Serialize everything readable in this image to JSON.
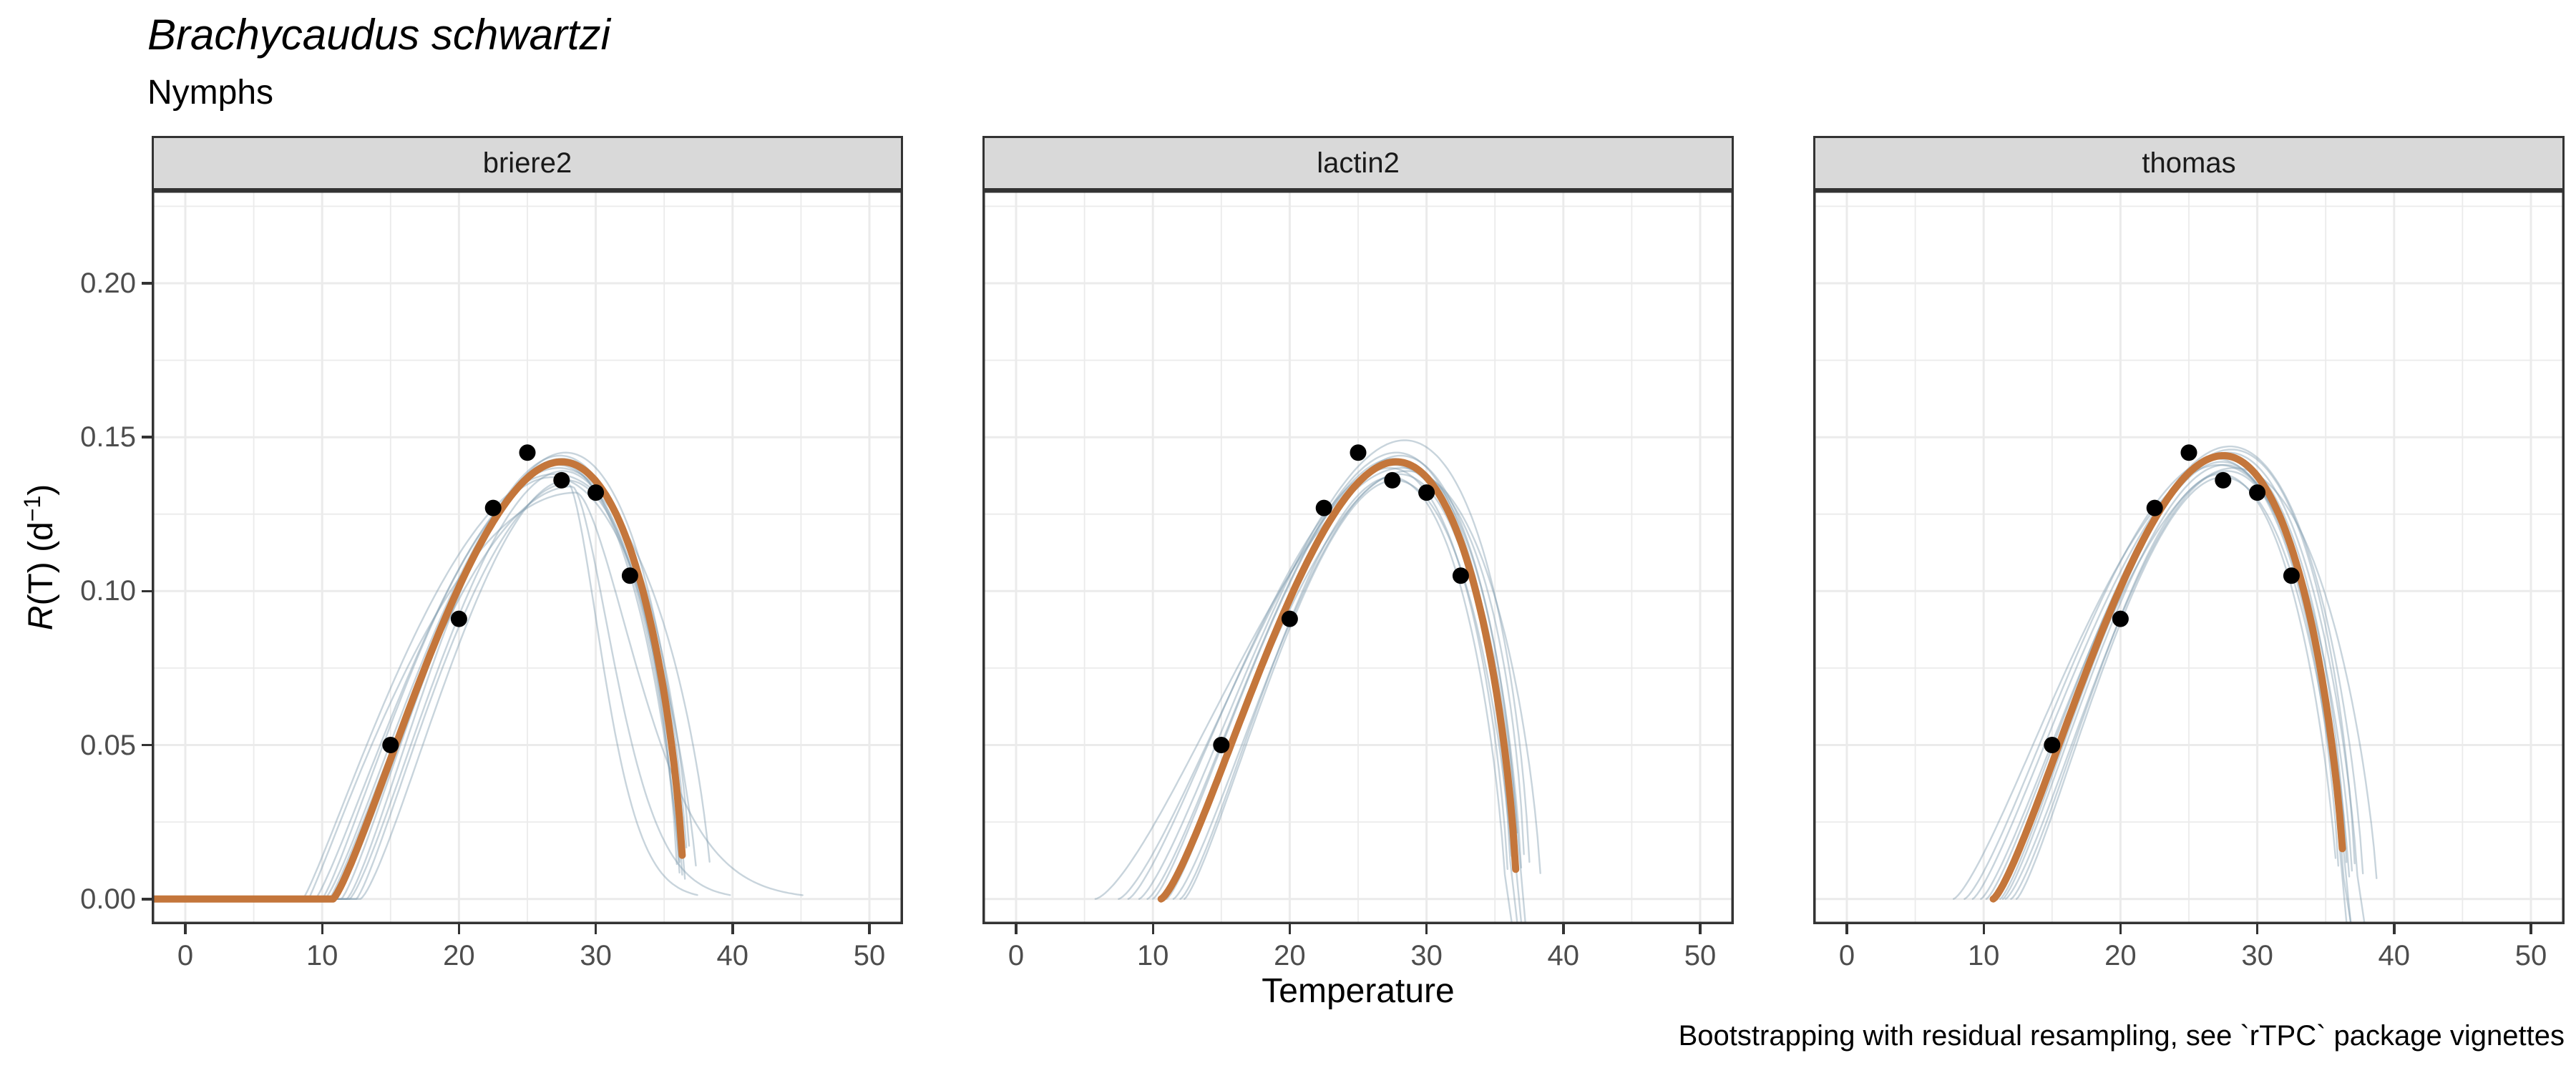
{
  "figure": {
    "title": "Brachycaudus schwartzi",
    "subtitle": "Nymphs",
    "x_axis_title": "Temperature",
    "caption": "Bootstrapping with residual resampling, see `rTPC` package vignettes",
    "y_axis_title": {
      "italic_var": "R",
      "plain": "(T) (d",
      "superscript": "−1",
      "close": ")"
    }
  },
  "chart_data": {
    "type": "line",
    "title": "Brachycaudus schwartzi",
    "subtitle": "Nymphs",
    "xlabel": "Temperature",
    "ylabel": "R(T) (d⁻¹)",
    "caption": "Bootstrapping with residual resampling, see `rTPC` package vignettes",
    "grid": true,
    "legend": "none",
    "xlim": [
      -2.46,
      52.46
    ],
    "ylim": [
      -0.0082,
      0.2302
    ],
    "x_ticks": [
      0,
      10,
      20,
      30,
      40,
      50
    ],
    "x_minor": [
      5,
      15,
      25,
      35,
      45
    ],
    "y_ticks": [
      0,
      0.05,
      0.1,
      0.15,
      0.2
    ],
    "y_tick_labels": [
      "0.00",
      "0.05",
      "0.10",
      "0.15",
      "0.20"
    ],
    "y_minor": [
      0.025,
      0.075,
      0.125,
      0.175,
      0.225
    ],
    "observed_points": {
      "temperature": [
        15,
        20,
        22.5,
        25,
        27.5,
        30,
        32.5
      ],
      "rate": [
        0.05,
        0.091,
        0.127,
        0.145,
        0.136,
        0.132,
        0.105
      ]
    },
    "facets": [
      {
        "label": "briere2",
        "fit": {
          "t0": 10.8,
          "topt": 27.5,
          "tmax": 36.45,
          "rmax": 0.142,
          "p": 1.25
        },
        "bootstraps": [
          {
            "t0": 8.6,
            "topt": 27.0,
            "tmax": 38.5,
            "rmax": 0.138,
            "p": 1.15
          },
          {
            "t0": 9.5,
            "topt": 27.3,
            "tmax": 37.0,
            "rmax": 0.14,
            "p": 1.2
          },
          {
            "t0": 10.2,
            "topt": 27.5,
            "tmax": 36.5,
            "rmax": 0.143,
            "p": 1.25
          },
          {
            "t0": 10.9,
            "topt": 27.8,
            "tmax": 36.8,
            "rmax": 0.145,
            "p": 1.3
          },
          {
            "t0": 11.4,
            "topt": 27.2,
            "tmax": 36.2,
            "rmax": 0.141,
            "p": 1.25
          },
          {
            "t0": 12.0,
            "topt": 27.6,
            "tmax": 36.4,
            "rmax": 0.139,
            "p": 1.3
          },
          {
            "t0": 12.8,
            "topt": 27.9,
            "tmax": 36.6,
            "rmax": 0.136,
            "p": 1.35
          },
          {
            "t0": 10.5,
            "topt": 28.3,
            "tmax": 41.5,
            "rmax": 0.134,
            "p": 1.2,
            "tail_s": 4.4
          },
          {
            "t0": 9.0,
            "topt": 28.6,
            "tmax": 47.5,
            "rmax": 0.132,
            "p": 1.1,
            "tail_s": 6.3
          },
          {
            "t0": 11.0,
            "topt": 27.4,
            "tmax": 36.0,
            "rmax": 0.144,
            "p": 1.25
          },
          {
            "t0": 10.0,
            "topt": 26.8,
            "tmax": 37.5,
            "rmax": 0.137,
            "p": 1.2
          },
          {
            "t0": 11.8,
            "topt": 27.1,
            "tmax": 36.3,
            "rmax": 0.142,
            "p": 1.3
          },
          {
            "t0": 12.5,
            "topt": 28.0,
            "tmax": 39.0,
            "rmax": 0.135,
            "p": 1.25,
            "tail_s": 3.6
          }
        ]
      },
      {
        "label": "lactin2",
        "fit": {
          "t0": 10.6,
          "topt": 27.8,
          "tmax": 36.6,
          "rmax": 0.142,
          "p": 1.35
        },
        "bootstraps": [
          {
            "t0": 5.8,
            "topt": 28.2,
            "tmax": 37.2,
            "rmax": 0.14,
            "p": 1.45
          },
          {
            "t0": 7.5,
            "topt": 27.9,
            "tmax": 36.8,
            "rmax": 0.142,
            "p": 1.4
          },
          {
            "t0": 9.0,
            "topt": 28.4,
            "tmax": 37.6,
            "rmax": 0.149,
            "p": 1.35
          },
          {
            "t0": 10.0,
            "topt": 27.6,
            "tmax": 36.2,
            "rmax": 0.143,
            "p": 1.3,
            "dip": 1
          },
          {
            "t0": 10.8,
            "topt": 27.3,
            "tmax": 36.0,
            "rmax": 0.14,
            "p": 1.3
          },
          {
            "t0": 11.5,
            "topt": 28.0,
            "tmax": 36.6,
            "rmax": 0.138,
            "p": 1.35,
            "dip": 1
          },
          {
            "t0": 12.3,
            "topt": 27.7,
            "tmax": 36.4,
            "rmax": 0.136,
            "p": 1.3
          },
          {
            "t0": 10.4,
            "topt": 28.6,
            "tmax": 38.4,
            "rmax": 0.139,
            "p": 1.3
          },
          {
            "t0": 8.2,
            "topt": 27.5,
            "tmax": 36.9,
            "rmax": 0.141,
            "p": 1.35,
            "dip": 1
          },
          {
            "t0": 11.0,
            "topt": 28.1,
            "tmax": 37.0,
            "rmax": 0.144,
            "p": 1.3
          },
          {
            "t0": 12.0,
            "topt": 27.4,
            "tmax": 35.8,
            "rmax": 0.137,
            "p": 1.35,
            "dip": 1
          },
          {
            "t0": 9.6,
            "topt": 27.8,
            "tmax": 36.5,
            "rmax": 0.145,
            "p": 1.35
          }
        ]
      },
      {
        "label": "thomas",
        "fit": {
          "t0": 10.7,
          "topt": 27.5,
          "tmax": 36.4,
          "rmax": 0.144,
          "p": 1.32
        },
        "bootstraps": [
          {
            "t0": 7.8,
            "topt": 27.2,
            "tmax": 37.0,
            "rmax": 0.141,
            "p": 1.35
          },
          {
            "t0": 9.2,
            "topt": 27.6,
            "tmax": 36.6,
            "rmax": 0.144,
            "p": 1.3
          },
          {
            "t0": 10.2,
            "topt": 28.0,
            "tmax": 37.8,
            "rmax": 0.147,
            "p": 1.3
          },
          {
            "t0": 10.9,
            "topt": 27.4,
            "tmax": 36.2,
            "rmax": 0.142,
            "p": 1.3,
            "dip": 1
          },
          {
            "t0": 11.6,
            "topt": 27.8,
            "tmax": 36.8,
            "rmax": 0.139,
            "p": 1.35
          },
          {
            "t0": 12.4,
            "topt": 27.5,
            "tmax": 36.4,
            "rmax": 0.137,
            "p": 1.3,
            "dip": 1
          },
          {
            "t0": 10.6,
            "topt": 28.3,
            "tmax": 38.8,
            "rmax": 0.14,
            "p": 1.25
          },
          {
            "t0": 8.6,
            "topt": 27.0,
            "tmax": 36.0,
            "rmax": 0.143,
            "p": 1.35
          },
          {
            "t0": 11.2,
            "topt": 27.9,
            "tmax": 37.4,
            "rmax": 0.145,
            "p": 1.3,
            "dip": 1
          },
          {
            "t0": 12.0,
            "topt": 27.3,
            "tmax": 35.9,
            "rmax": 0.138,
            "p": 1.35
          },
          {
            "t0": 9.8,
            "topt": 28.1,
            "tmax": 37.2,
            "rmax": 0.146,
            "p": 1.3
          },
          {
            "t0": 11.4,
            "topt": 27.6,
            "tmax": 36.5,
            "rmax": 0.141,
            "p": 1.3,
            "dip": 1
          }
        ]
      }
    ],
    "colors": {
      "fit": "#C4763B",
      "bootstrap": "#7D99AC",
      "bootstrap_opacity": 0.42,
      "point": "#000000",
      "grid": "#EBEBEB",
      "panel_border": "#333333",
      "strip_bg": "#D9D9D9",
      "axis_text": "#4D4D4D"
    }
  }
}
